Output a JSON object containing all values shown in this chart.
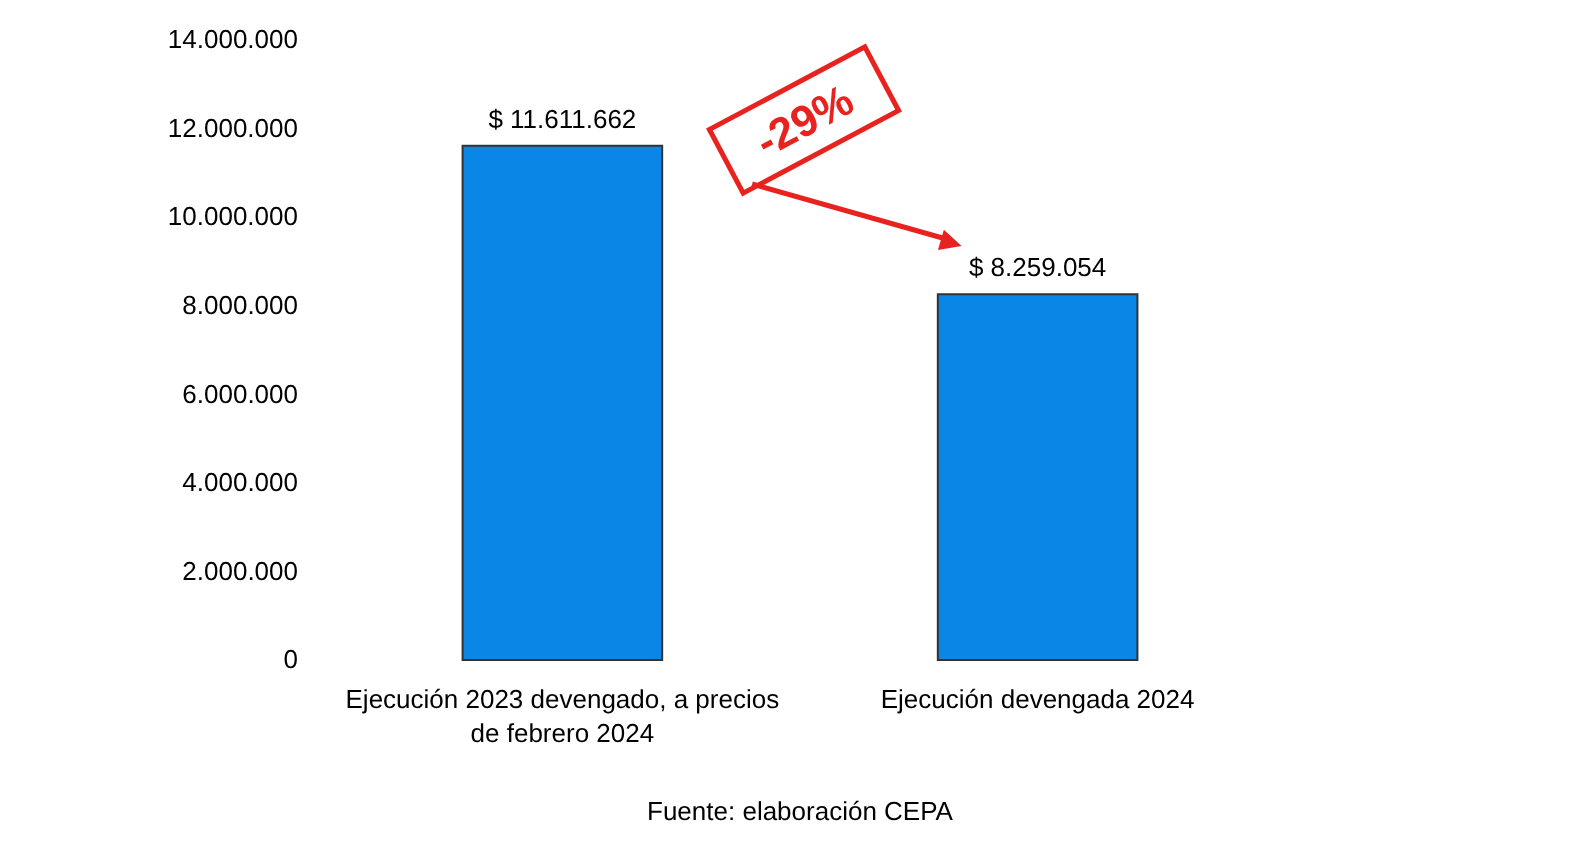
{
  "chart_data": {
    "type": "bar",
    "categories": [
      "Ejecución 2023 devengado, a precios de febrero 2024",
      "Ejecución devengada 2024"
    ],
    "values": [
      11611662,
      8259054
    ],
    "value_labels": [
      "$ 11.611.662",
      "$ 8.259.054"
    ],
    "color": "#0a86e6",
    "ylim": [
      0,
      14000000
    ],
    "yticks": [
      0,
      {
        "value": 2000000,
        "label": "2.000.000"
      },
      {
        "value": 4000000,
        "label": "4.000.000"
      },
      {
        "value": 6000000,
        "label": "6.000.000"
      },
      {
        "value": 8000000,
        "label": "8.000.000"
      },
      {
        "value": 10000000,
        "label": "10.000.000"
      },
      {
        "value": 12000000,
        "label": "12.000.000"
      },
      {
        "value": 14000000,
        "label": "14.000.000"
      }
    ],
    "grid": false,
    "annotations": [
      "-29%",
      "Fuente: elaboración CEPA"
    ]
  }
}
